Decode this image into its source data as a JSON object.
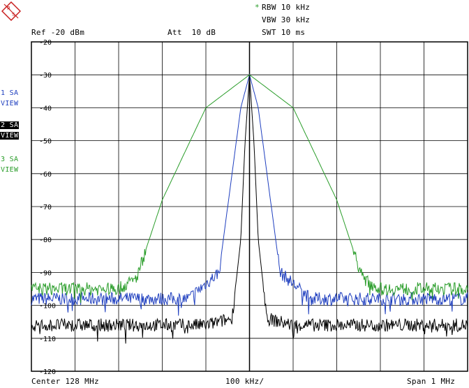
{
  "header": {
    "rbw_marker": "*",
    "rbw": "RBW 10 kHz",
    "vbw": "VBW 30 kHz",
    "swt": "SWT 10 ms",
    "ref": "Ref -20 dBm",
    "att": "Att  10 dB"
  },
  "traces": [
    {
      "line1": "1 SA",
      "line2": "VIEW",
      "color": "#1f3fbf",
      "highlight": false
    },
    {
      "line1": "2 SA",
      "line2": "VIEW",
      "color": "#000000",
      "highlight": true
    },
    {
      "line1": "3 SA",
      "line2": "VIEW",
      "color": "#2a9d2a",
      "highlight": false
    }
  ],
  "footer": {
    "center": "Center 128 MHz",
    "div": "100 kHz/",
    "span": "Span 1 MHz"
  },
  "chart_data": {
    "type": "line",
    "x_unit": "MHz",
    "xlim": [
      127.5,
      128.5
    ],
    "ylim": [
      -120,
      -20
    ],
    "y_ticks": [
      "-20",
      "-30",
      "-40",
      "-50",
      "-60",
      "-70",
      "-80",
      "-90",
      "-100",
      "-110",
      "-120"
    ],
    "grid": true,
    "series": [
      {
        "color": "#1f3fbf",
        "x": [
          127.5,
          127.6,
          127.7,
          127.8,
          127.86,
          127.93,
          127.96,
          127.98,
          128.0,
          128.02,
          128.04,
          128.07,
          128.14,
          128.2,
          128.3,
          128.4,
          128.5
        ],
        "y": [
          -98,
          -98,
          -98,
          -98,
          -98,
          -90,
          -60,
          -40,
          -30,
          -40,
          -60,
          -90,
          -98,
          -98,
          -98,
          -98,
          -98
        ]
      },
      {
        "color": "#000000",
        "x": [
          127.5,
          127.6,
          127.7,
          127.8,
          127.9,
          127.96,
          127.98,
          127.99,
          128.0,
          128.01,
          128.02,
          128.04,
          128.1,
          128.2,
          128.3,
          128.4,
          128.5
        ],
        "y": [
          -106,
          -106,
          -106,
          -106,
          -106,
          -104,
          -80,
          -50,
          -30,
          -50,
          -80,
          -104,
          -106,
          -106,
          -106,
          -106,
          -106
        ]
      },
      {
        "color": "#2a9d2a",
        "x": [
          127.5,
          127.6,
          127.7,
          127.74,
          127.8,
          127.9,
          128.0,
          128.1,
          128.2,
          128.26,
          128.3,
          128.4,
          128.5
        ],
        "y": [
          -95,
          -95,
          -95,
          -92,
          -68,
          -40,
          -30,
          -40,
          -68,
          -92,
          -95,
          -95,
          -95
        ]
      }
    ]
  }
}
